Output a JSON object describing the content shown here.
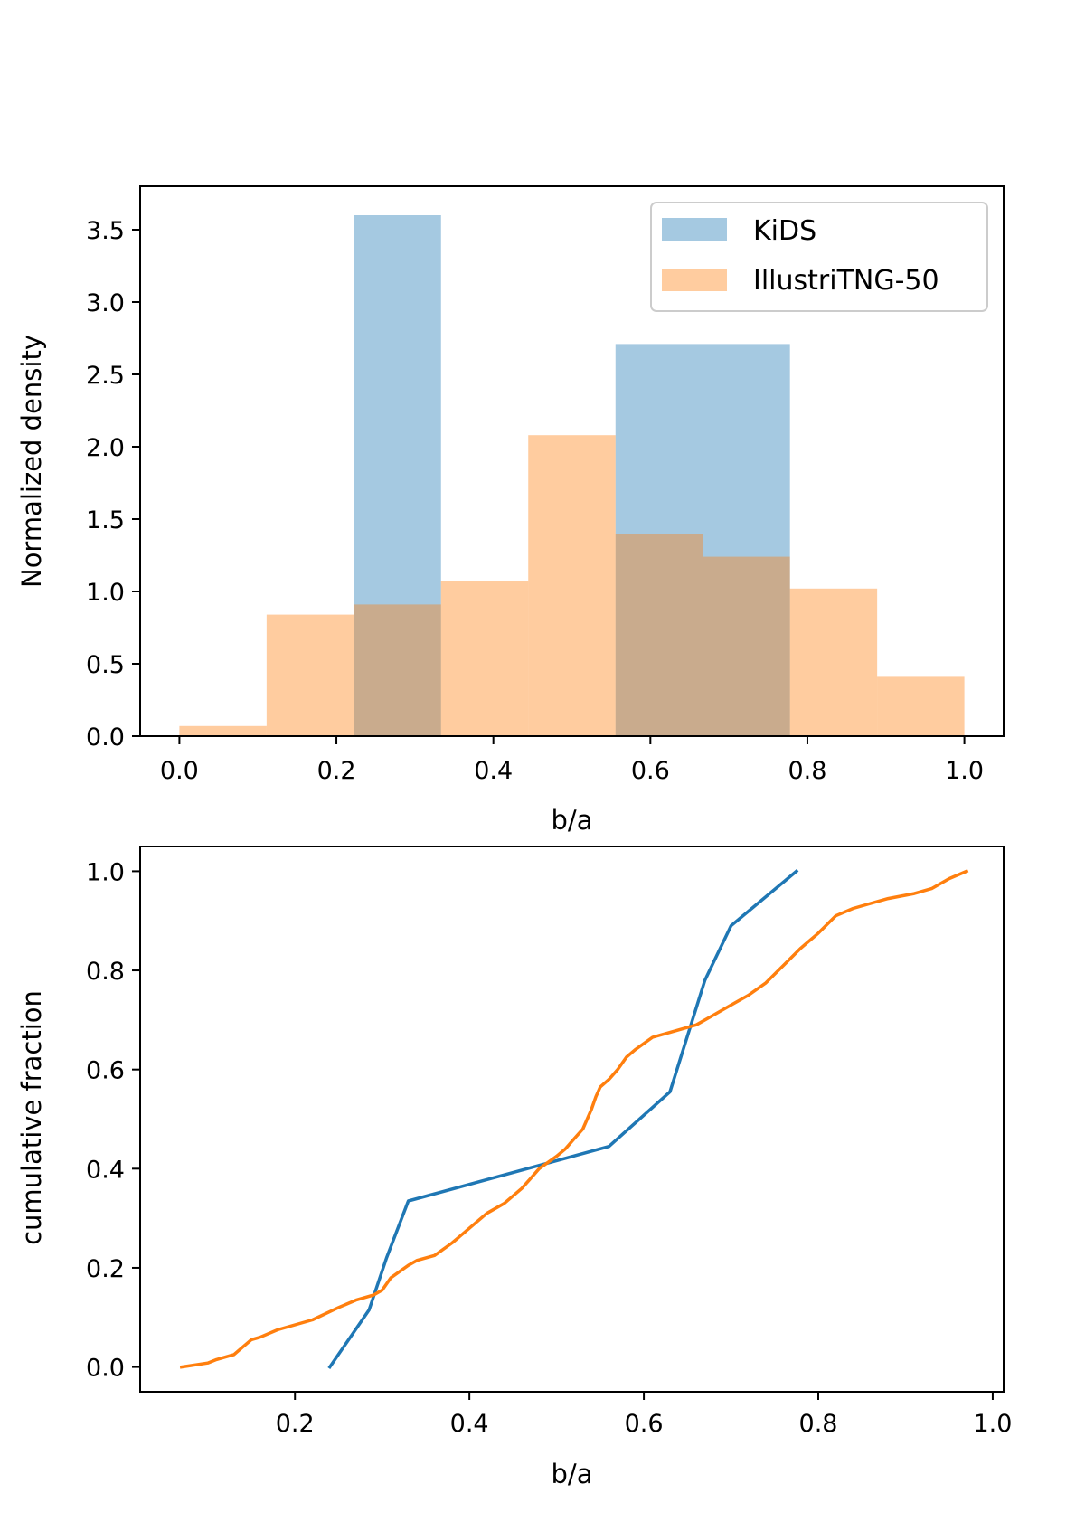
{
  "chart_data": [
    {
      "type": "bar",
      "subtype": "overlapping-histogram",
      "title": "",
      "xlabel": "b/a",
      "ylabel": "Normalized density",
      "xlim": [
        -0.05,
        1.05
      ],
      "ylim": [
        0,
        3.8
      ],
      "xticks": [
        "0.0",
        "0.2",
        "0.4",
        "0.6",
        "0.8",
        "1.0"
      ],
      "yticks": [
        "0.0",
        "0.5",
        "1.0",
        "1.5",
        "2.0",
        "2.5",
        "3.0",
        "3.5"
      ],
      "legend": {
        "location": "upper right"
      },
      "series": [
        {
          "name": "KiDS",
          "color": "#1f77b4",
          "alpha": 0.4,
          "bins": [
            {
              "x0": 0.2222,
              "x1": 0.3333,
              "value": 3.6
            },
            {
              "x0": 0.5556,
              "x1": 0.6667,
              "value": 2.71
            },
            {
              "x0": 0.6667,
              "x1": 0.7778,
              "value": 2.71
            }
          ]
        },
        {
          "name": "IllustriTNG-50",
          "color": "#ff7f0e",
          "alpha": 0.4,
          "bins": [
            {
              "x0": 0.0,
              "x1": 0.1111,
              "value": 0.07
            },
            {
              "x0": 0.1111,
              "x1": 0.2222,
              "value": 0.84
            },
            {
              "x0": 0.2222,
              "x1": 0.3333,
              "value": 0.91
            },
            {
              "x0": 0.3333,
              "x1": 0.4444,
              "value": 1.07
            },
            {
              "x0": 0.4444,
              "x1": 0.5556,
              "value": 2.08
            },
            {
              "x0": 0.5556,
              "x1": 0.6667,
              "value": 1.4
            },
            {
              "x0": 0.6667,
              "x1": 0.7778,
              "value": 1.24
            },
            {
              "x0": 0.7778,
              "x1": 0.8889,
              "value": 1.02
            },
            {
              "x0": 0.8889,
              "x1": 1.0,
              "value": 0.41
            }
          ]
        }
      ]
    },
    {
      "type": "line",
      "subtype": "cumulative-distribution",
      "title": "",
      "xlabel": "b/a",
      "ylabel": "cumulative fraction",
      "xlim": [
        0.0225,
        1.0125
      ],
      "ylim": [
        -0.05,
        1.05
      ],
      "xticks": [
        "0.2",
        "0.4",
        "0.6",
        "0.8",
        "1.0"
      ],
      "yticks": [
        "0.0",
        "0.2",
        "0.4",
        "0.6",
        "0.8",
        "1.0"
      ],
      "series": [
        {
          "name": "KiDS",
          "color": "#1f77b4",
          "x": [
            0.24,
            0.285,
            0.305,
            0.33,
            0.56,
            0.63,
            0.67,
            0.7,
            0.775
          ],
          "y": [
            0.0,
            0.115,
            0.22,
            0.335,
            0.445,
            0.555,
            0.78,
            0.89,
            1.0
          ]
        },
        {
          "name": "IllustriTNG-50",
          "color": "#ff7f0e",
          "x": [
            0.07,
            0.1,
            0.11,
            0.13,
            0.14,
            0.15,
            0.16,
            0.18,
            0.2,
            0.22,
            0.25,
            0.27,
            0.29,
            0.3,
            0.31,
            0.33,
            0.34,
            0.36,
            0.38,
            0.4,
            0.42,
            0.44,
            0.46,
            0.47,
            0.48,
            0.5,
            0.51,
            0.52,
            0.53,
            0.54,
            0.545,
            0.55,
            0.56,
            0.57,
            0.58,
            0.59,
            0.61,
            0.63,
            0.66,
            0.68,
            0.7,
            0.72,
            0.74,
            0.76,
            0.78,
            0.8,
            0.82,
            0.84,
            0.86,
            0.88,
            0.91,
            0.93,
            0.95,
            0.97
          ],
          "y": [
            0.0,
            0.008,
            0.015,
            0.025,
            0.04,
            0.055,
            0.06,
            0.075,
            0.085,
            0.095,
            0.12,
            0.135,
            0.145,
            0.155,
            0.18,
            0.205,
            0.215,
            0.225,
            0.25,
            0.28,
            0.31,
            0.33,
            0.36,
            0.38,
            0.4,
            0.425,
            0.44,
            0.46,
            0.48,
            0.52,
            0.545,
            0.565,
            0.58,
            0.6,
            0.625,
            0.64,
            0.665,
            0.675,
            0.69,
            0.71,
            0.73,
            0.75,
            0.775,
            0.81,
            0.845,
            0.875,
            0.91,
            0.925,
            0.935,
            0.945,
            0.955,
            0.965,
            0.985,
            1.0
          ]
        }
      ]
    }
  ]
}
